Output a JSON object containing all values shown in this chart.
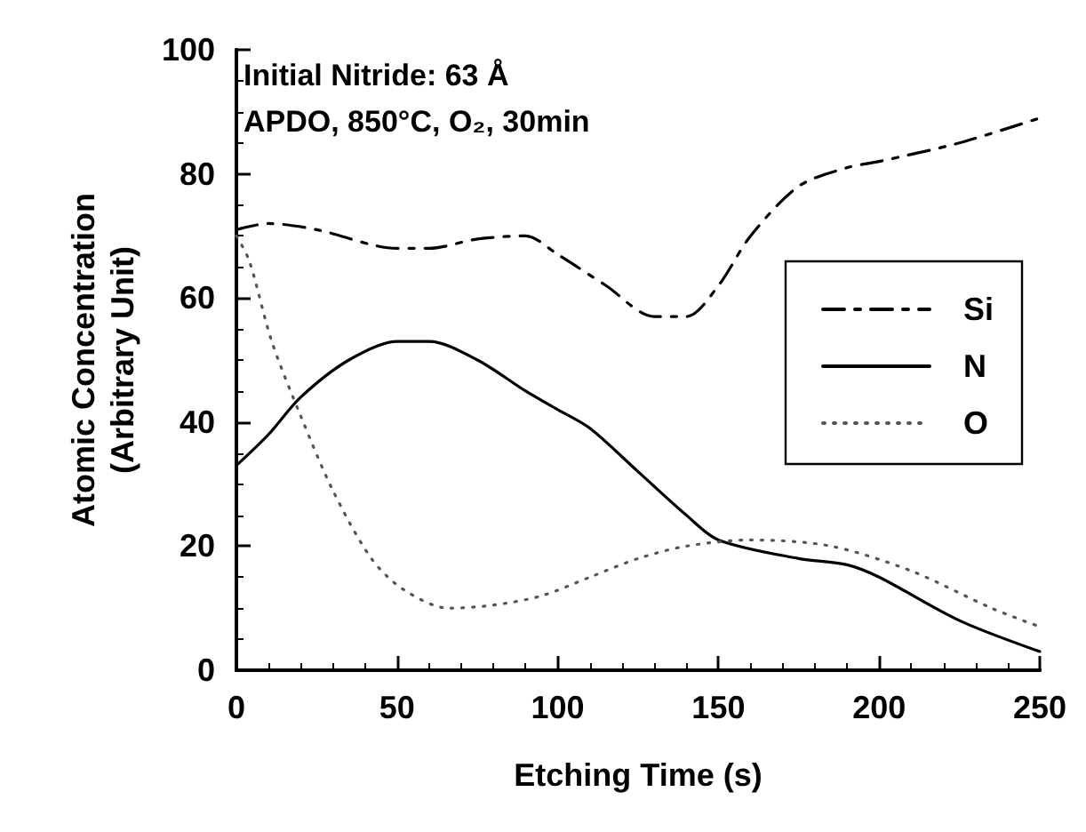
{
  "chart_data": {
    "type": "line",
    "xlabel": "Etching Time (s)",
    "ylabel": "Atomic Concentration\n(Arbitrary Unit)",
    "annotations": [
      "Initial Nitride: 63 Å",
      "APDO, 850°C, O₂, 30min"
    ],
    "xlim": [
      0,
      250
    ],
    "xticks": [
      0,
      50,
      100,
      150,
      200,
      250
    ],
    "ylim": [
      0,
      100
    ],
    "yticks": [
      0,
      20,
      40,
      60,
      80,
      100
    ],
    "grid": false,
    "legend": "right",
    "marker": "none",
    "series": [
      {
        "name": "Si",
        "color": "#000000",
        "line_style": "dashed",
        "x": [
          0,
          10,
          25,
          50,
          60,
          75,
          90,
          100,
          115,
          130,
          140,
          150,
          160,
          175,
          190,
          200,
          225,
          250
        ],
        "values": [
          71,
          72,
          71,
          68,
          68,
          69.5,
          70,
          67,
          62,
          57,
          57,
          62,
          70,
          78,
          81,
          82,
          85,
          89
        ]
      },
      {
        "name": "N",
        "color": "#000000",
        "line_style": "solid",
        "x": [
          0,
          10,
          20,
          35,
          50,
          60,
          75,
          90,
          100,
          110,
          125,
          140,
          150,
          175,
          190,
          200,
          225,
          250
        ],
        "values": [
          33,
          38,
          44,
          50,
          53,
          53,
          50,
          45,
          42,
          39,
          32,
          25,
          21,
          18,
          17,
          15,
          8,
          3
        ]
      },
      {
        "name": "O",
        "color": "#555555",
        "line_style": "dotted",
        "x": [
          0,
          4,
          11,
          20,
          30,
          42,
          52,
          66,
          80,
          95,
          110,
          125,
          140,
          160,
          185,
          210,
          235,
          250
        ],
        "values": [
          70,
          66,
          53,
          41,
          29,
          18,
          13,
          10,
          10.5,
          12,
          15,
          18,
          20,
          21,
          20,
          16,
          10,
          7
        ]
      }
    ]
  }
}
